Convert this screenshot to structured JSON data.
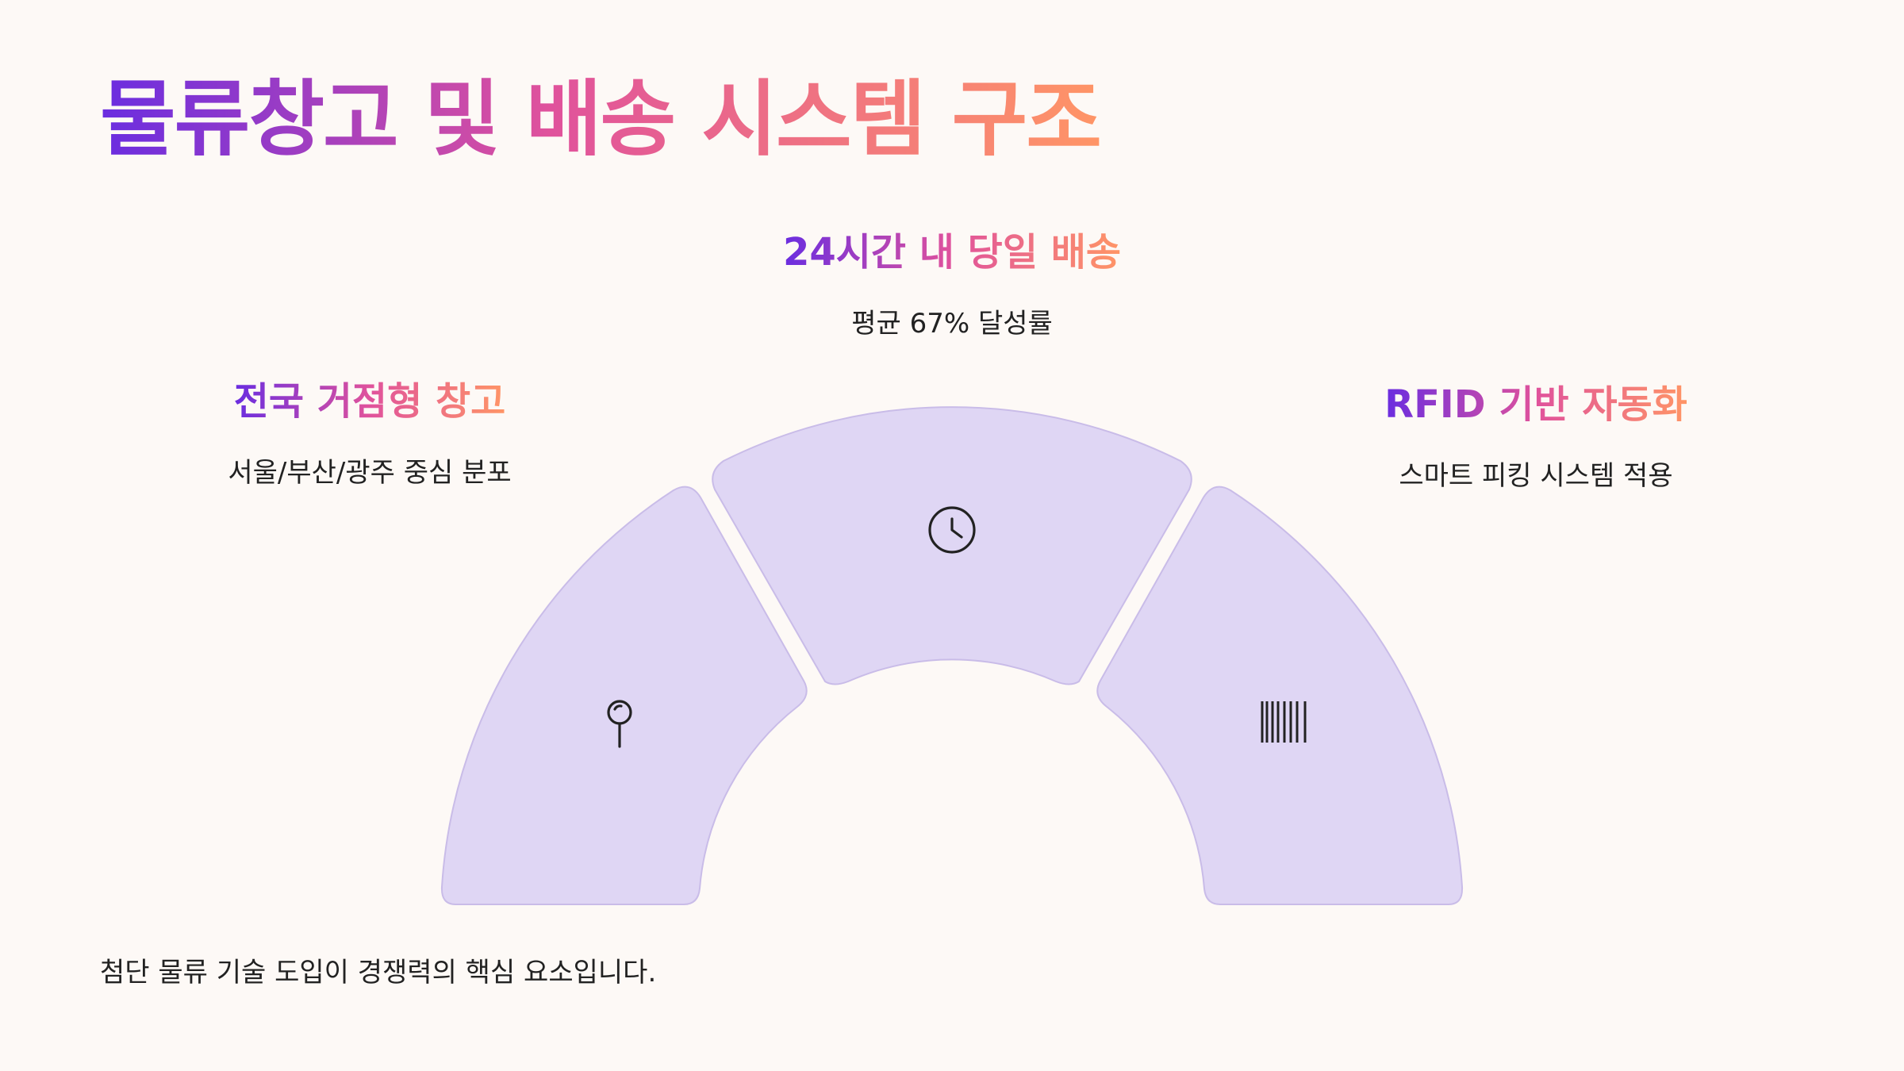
{
  "title": "물류창고 및 배송 시스템 구조",
  "features": {
    "left": {
      "title": "전국 거점형 창고",
      "description": "서울/부산/광주 중심 분포",
      "icon": "map-pin-icon"
    },
    "center": {
      "title": "24시간 내 당일 배송",
      "description": "평균 67% 달성률",
      "icon": "clock-icon"
    },
    "right": {
      "title": "RFID 기반 자동화",
      "description": "스마트 피킹 시스템 적용",
      "icon": "barcode-icon"
    }
  },
  "diagram": {
    "type": "semicircle-segments",
    "segments": 3,
    "fill": "#dfd6f4",
    "stroke": "#c9bce8",
    "icon_color": "#222222"
  },
  "footnote": "첨단 물류 기술 도입이 경쟁력의 핵심 요소입니다."
}
